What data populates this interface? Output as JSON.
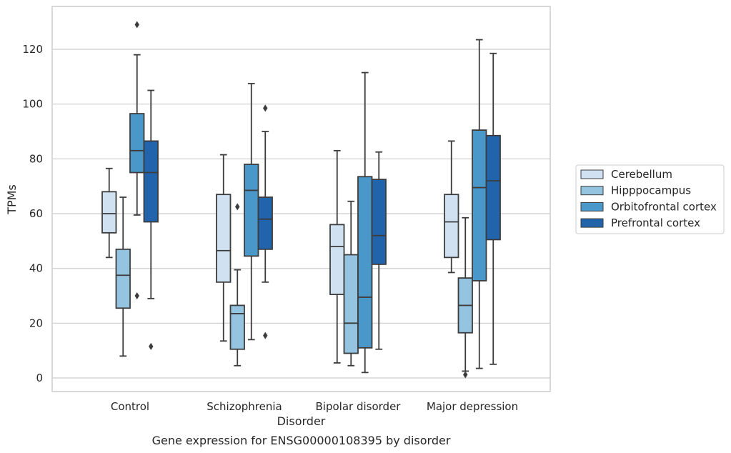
{
  "chart_data": {
    "type": "box",
    "title": "Gene expression for ENSG00000108395 by disorder",
    "xlabel": "Disorder",
    "ylabel": "TPMs",
    "ylim": [
      -5,
      136
    ],
    "yticks": [
      0,
      20,
      40,
      60,
      80,
      100,
      120
    ],
    "grid": "horizontal",
    "legend_position": "right",
    "categories": [
      "Control",
      "Schizophrenia",
      "Bipolar disorder",
      "Major depression"
    ],
    "series": [
      {
        "name": "Cerebellum",
        "color": "#d0e1f2",
        "boxes": [
          {
            "whisker_low": 44,
            "q1": 53,
            "median": 60,
            "q3": 68,
            "whisker_high": 76.5,
            "outliers": []
          },
          {
            "whisker_low": 13.5,
            "q1": 35,
            "median": 46.5,
            "q3": 67,
            "whisker_high": 81.5,
            "outliers": []
          },
          {
            "whisker_low": 5.5,
            "q1": 30.5,
            "median": 48,
            "q3": 56,
            "whisker_high": 83,
            "outliers": []
          },
          {
            "whisker_low": 38.5,
            "q1": 44,
            "median": 57,
            "q3": 67,
            "whisker_high": 86.5,
            "outliers": []
          }
        ]
      },
      {
        "name": "Hipppocampus",
        "color": "#94c4df",
        "boxes": [
          {
            "whisker_low": 8,
            "q1": 25.5,
            "median": 37.5,
            "q3": 47,
            "whisker_high": 66,
            "outliers": []
          },
          {
            "whisker_low": 4.5,
            "q1": 10.5,
            "median": 23.5,
            "q3": 26.5,
            "whisker_high": 39.5,
            "outliers": [
              62.5
            ]
          },
          {
            "whisker_low": 4.5,
            "q1": 9,
            "median": 20,
            "q3": 45,
            "whisker_high": 64.5,
            "outliers": []
          },
          {
            "whisker_low": 2.5,
            "q1": 16.5,
            "median": 26.5,
            "q3": 36.5,
            "whisker_high": 58.5,
            "outliers": [
              1.2
            ]
          }
        ]
      },
      {
        "name": "Orbitofrontal cortex",
        "color": "#4a98c9",
        "boxes": [
          {
            "whisker_low": 59.5,
            "q1": 75,
            "median": 83,
            "q3": 96.5,
            "whisker_high": 118,
            "outliers": [
              129,
              30
            ]
          },
          {
            "whisker_low": 14,
            "q1": 44.5,
            "median": 68.5,
            "q3": 78,
            "whisker_high": 107.5,
            "outliers": []
          },
          {
            "whisker_low": 2,
            "q1": 11,
            "median": 29.5,
            "q3": 73.5,
            "whisker_high": 111.5,
            "outliers": []
          },
          {
            "whisker_low": 3.5,
            "q1": 35.5,
            "median": 69.5,
            "q3": 90.5,
            "whisker_high": 123.5,
            "outliers": []
          }
        ]
      },
      {
        "name": "Prefrontal cortex",
        "color": "#2164ab",
        "boxes": [
          {
            "whisker_low": 29,
            "q1": 57,
            "median": 75,
            "q3": 86.5,
            "whisker_high": 105,
            "outliers": [
              11.5
            ]
          },
          {
            "whisker_low": 35,
            "q1": 47,
            "median": 58,
            "q3": 66,
            "whisker_high": 90,
            "outliers": [
              98.5,
              15.5
            ]
          },
          {
            "whisker_low": 10.5,
            "q1": 41.5,
            "median": 52,
            "q3": 72.5,
            "whisker_high": 82.5,
            "outliers": []
          },
          {
            "whisker_low": 5,
            "q1": 50.5,
            "median": 72,
            "q3": 88.5,
            "whisker_high": 118.5,
            "outliers": []
          }
        ]
      }
    ]
  }
}
